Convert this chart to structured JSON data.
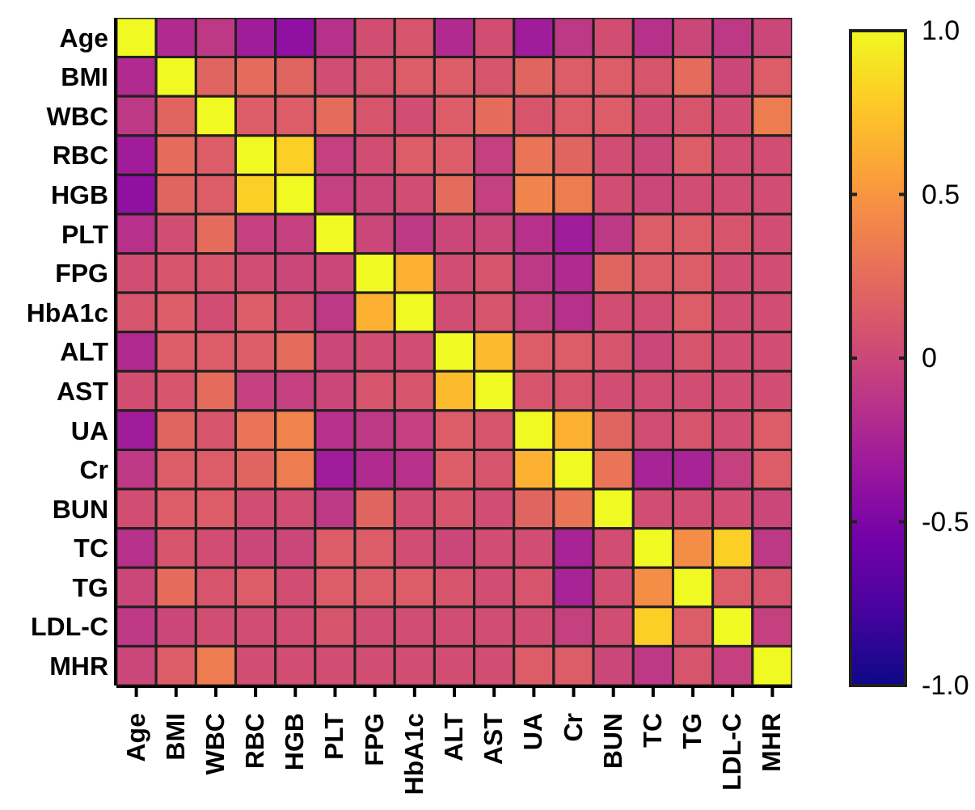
{
  "chart_data": {
    "type": "heatmap",
    "categories": [
      "Age",
      "BMI",
      "WBC",
      "RBC",
      "HGB",
      "PLT",
      "FPG",
      "HbA1c",
      "ALT",
      "AST",
      "UA",
      "Cr",
      "BUN",
      "TC",
      "TG",
      "LDL-C",
      "MHR"
    ],
    "y_categories": [
      "Age",
      "BMI",
      "WBC",
      "RBC",
      "HGB",
      "PLT",
      "FPG",
      "HbA1c",
      "ALT",
      "AST",
      "UA",
      "Cr",
      "BUN",
      "TC",
      "TG",
      "LDL-C",
      "MHR"
    ],
    "cells": [
      [
        1,
        -0.2,
        -0.1,
        -0.3,
        -0.4,
        -0.15,
        0.05,
        0.1,
        -0.2,
        0.05,
        -0.3,
        -0.1,
        0.05,
        -0.15,
        0,
        -0.1,
        0
      ],
      [
        -0.2,
        1,
        0.2,
        0.25,
        0.2,
        0.05,
        0.1,
        0.15,
        0.15,
        0.1,
        0.2,
        0.15,
        0.15,
        0.1,
        0.25,
        0,
        0.15
      ],
      [
        -0.1,
        0.2,
        1,
        0.15,
        0.15,
        0.25,
        0.1,
        0.05,
        0.15,
        0.25,
        0.1,
        0.15,
        0.15,
        0.05,
        0.1,
        0.05,
        0.35
      ],
      [
        -0.3,
        0.25,
        0.15,
        1,
        0.8,
        -0.05,
        0.05,
        0.15,
        0.15,
        -0.05,
        0.3,
        0.2,
        0.05,
        0,
        0.15,
        0.05,
        0.05
      ],
      [
        -0.4,
        0.2,
        0.15,
        0.8,
        1,
        -0.05,
        0,
        0.05,
        0.25,
        -0.05,
        0.4,
        0.35,
        0.05,
        0,
        0.05,
        0.05,
        0.05
      ],
      [
        -0.15,
        0.05,
        0.25,
        -0.05,
        -0.05,
        1,
        0,
        -0.1,
        0,
        0,
        -0.15,
        -0.3,
        -0.1,
        0.15,
        0.15,
        0.1,
        0.05
      ],
      [
        0.05,
        0.1,
        0.1,
        0.05,
        0,
        0,
        1,
        0.65,
        0.05,
        0.1,
        -0.1,
        -0.2,
        0.2,
        0.15,
        0.15,
        0.05,
        0.05
      ],
      [
        0.1,
        0.15,
        0.05,
        0.15,
        0.05,
        -0.1,
        0.65,
        1,
        0.05,
        0.1,
        -0.05,
        -0.15,
        0.05,
        0.05,
        0.15,
        0.05,
        0.05
      ],
      [
        -0.2,
        0.15,
        0.15,
        0.15,
        0.25,
        0,
        0.05,
        0.05,
        1,
        0.7,
        0.15,
        0.15,
        0.1,
        0,
        0.1,
        0.05,
        0.05
      ],
      [
        0.05,
        0.1,
        0.25,
        -0.05,
        -0.05,
        0,
        0.1,
        0.1,
        0.7,
        1,
        0.1,
        0.1,
        0.05,
        0.05,
        0.05,
        0.05,
        0.05
      ],
      [
        -0.3,
        0.2,
        0.1,
        0.3,
        0.4,
        -0.15,
        -0.1,
        -0.05,
        0.15,
        0.1,
        1,
        0.65,
        0.2,
        0.05,
        0.1,
        0.05,
        0.15
      ],
      [
        -0.1,
        0.15,
        0.15,
        0.2,
        0.35,
        -0.3,
        -0.2,
        -0.15,
        0.15,
        0.1,
        0.65,
        1,
        0.3,
        -0.25,
        -0.25,
        -0.05,
        0.15
      ],
      [
        0.05,
        0.15,
        0.15,
        0.05,
        0.05,
        -0.1,
        0.2,
        0.05,
        0.1,
        0.05,
        0.2,
        0.3,
        1,
        0.05,
        0.05,
        0.05,
        0
      ],
      [
        -0.15,
        0.1,
        0.05,
        0,
        0,
        0.15,
        0.15,
        0.05,
        0,
        0.05,
        0.05,
        -0.25,
        0.05,
        1,
        0.45,
        0.8,
        -0.1
      ],
      [
        0,
        0.25,
        0.1,
        0.15,
        0.05,
        0.15,
        0.15,
        0.15,
        0.1,
        0.05,
        0.1,
        -0.25,
        0.05,
        0.45,
        1,
        0.15,
        0.1
      ],
      [
        -0.1,
        0,
        0.05,
        0.05,
        0.05,
        0.1,
        0.05,
        0.05,
        0.05,
        0.05,
        0.05,
        -0.05,
        0.05,
        0.8,
        0.15,
        1,
        -0.05
      ],
      [
        0,
        0.15,
        0.35,
        0.05,
        0.05,
        0.05,
        0.05,
        0.05,
        0.05,
        0.05,
        0.15,
        0.15,
        0,
        -0.1,
        0.1,
        -0.05,
        1
      ]
    ],
    "clim": [
      -1,
      1
    ],
    "cticks": [
      {
        "value": 1,
        "label": "1.0"
      },
      0.5,
      0,
      -0.5,
      {
        "value": -1,
        "label": "-1.0"
      }
    ]
  }
}
